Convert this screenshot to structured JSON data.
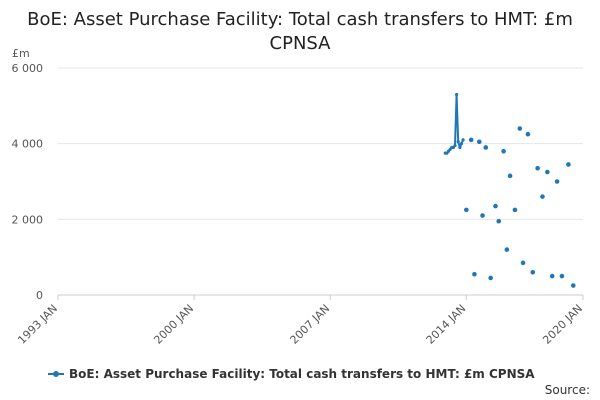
{
  "chart_data": {
    "type": "line",
    "title": "BoE: Asset Purchase Facility: Total cash transfers to HMT: £m CPNSA",
    "unit_label": "£m",
    "ylim": [
      0,
      6000
    ],
    "y_ticks": [
      {
        "value": 0,
        "label": "0"
      },
      {
        "value": 2000,
        "label": "2 000"
      },
      {
        "value": 4000,
        "label": "4 000"
      },
      {
        "value": 6000,
        "label": "6 000"
      }
    ],
    "xlim": [
      "1993-01",
      "2020-01"
    ],
    "x_ticks": [
      {
        "value": "1993-01",
        "label": "1993 JAN"
      },
      {
        "value": "2000-01",
        "label": "2000 JAN"
      },
      {
        "value": "2007-01",
        "label": "2007 JAN"
      },
      {
        "value": "2014-01",
        "label": "2014 JAN"
      },
      {
        "value": "2020-01",
        "label": "2020 JAN"
      }
    ],
    "grid": true,
    "legend_position": "bottom-left",
    "series": [
      {
        "name": "BoE: Asset Purchase Facility: Total cash transfers to HMT: £m CPNSA",
        "color": "#1f78b4",
        "line_points": [
          [
            "2012-12",
            3750
          ],
          [
            "2013-01",
            3750
          ],
          [
            "2013-02",
            3800
          ],
          [
            "2013-03",
            3850
          ],
          [
            "2013-04",
            3900
          ],
          [
            "2013-05",
            3900
          ],
          [
            "2013-06",
            3950
          ],
          [
            "2013-07",
            5300
          ],
          [
            "2013-08",
            4050
          ],
          [
            "2013-09",
            3900
          ],
          [
            "2013-10",
            4000
          ],
          [
            "2013-11",
            4100
          ]
        ],
        "scatter_points": [
          [
            "2014-01",
            2250
          ],
          [
            "2014-04",
            4100
          ],
          [
            "2014-06",
            550
          ],
          [
            "2014-09",
            4050
          ],
          [
            "2014-11",
            2100
          ],
          [
            "2015-01",
            3900
          ],
          [
            "2015-04",
            450
          ],
          [
            "2015-07",
            2350
          ],
          [
            "2015-09",
            1950
          ],
          [
            "2015-12",
            3800
          ],
          [
            "2016-02",
            1200
          ],
          [
            "2016-04",
            3150
          ],
          [
            "2016-07",
            2250
          ],
          [
            "2016-10",
            4400
          ],
          [
            "2016-12",
            850
          ],
          [
            "2017-03",
            4250
          ],
          [
            "2017-06",
            600
          ],
          [
            "2017-09",
            3350
          ],
          [
            "2017-12",
            2600
          ],
          [
            "2018-03",
            3250
          ],
          [
            "2018-06",
            500
          ],
          [
            "2018-09",
            3000
          ],
          [
            "2018-12",
            500
          ],
          [
            "2019-04",
            3450
          ],
          [
            "2019-07",
            250
          ]
        ]
      }
    ]
  },
  "footer": {
    "source_label": "Source:"
  }
}
